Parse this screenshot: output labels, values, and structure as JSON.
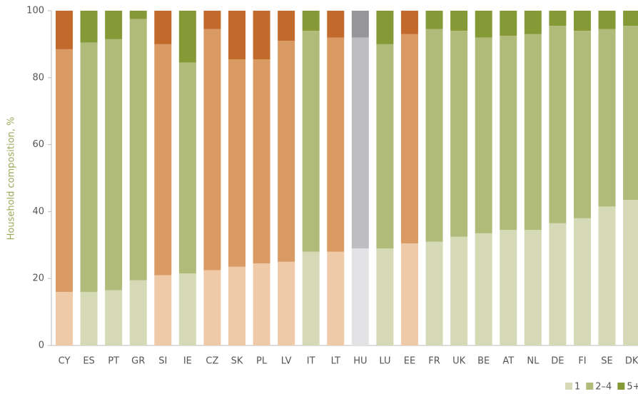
{
  "chart_data": {
    "type": "stacked_bar",
    "y_axis_label": "Household composition, %",
    "categories": [
      "CY",
      "ES",
      "PT",
      "GR",
      "SI",
      "IE",
      "CZ",
      "SK",
      "PL",
      "LV",
      "IT",
      "LT",
      "HU",
      "LU",
      "EE",
      "FR",
      "UK",
      "BE",
      "AT",
      "NL",
      "DE",
      "FI",
      "SE",
      "DK"
    ],
    "series": [
      {
        "name": "1",
        "color": "#d6d9b6",
        "values": [
          16,
          16,
          16.5,
          19.5,
          21,
          21.5,
          22.5,
          23.5,
          24.5,
          25,
          28,
          28,
          29,
          29,
          30.5,
          31,
          32.5,
          33.5,
          34.5,
          34.5,
          36.5,
          38,
          41.5,
          43.5
        ],
        "colors": [
          "#efcaa9",
          "#d6d9b6",
          "#d6d9b6",
          "#d6d9b6",
          "#efcaa9",
          "#d6d9b6",
          "#efcaa9",
          "#efcaa9",
          "#efcaa9",
          "#efcaa9",
          "#d6d9b6",
          "#efcaa9",
          "#e3e3e6",
          "#d6d9b6",
          "#efcaa9",
          "#d6d9b6",
          "#d6d9b6",
          "#d6d9b6",
          "#d6d9b6",
          "#d6d9b6",
          "#d6d9b6",
          "#d6d9b6",
          "#d6d9b6",
          "#d6d9b6"
        ]
      },
      {
        "name": "2–4",
        "color": "#b0bb7a",
        "values": [
          72.5,
          74.5,
          75,
          78,
          69,
          63,
          72,
          62,
          61,
          66,
          66,
          64,
          63,
          61,
          62.5,
          63.5,
          61.5,
          58.5,
          58,
          58.5,
          59,
          56,
          53,
          52
        ],
        "colors": [
          "#d99a63",
          "#b0bb7a",
          "#b0bb7a",
          "#b0bb7a",
          "#d99a63",
          "#b0bb7a",
          "#d99a63",
          "#d99a63",
          "#d99a63",
          "#d99a63",
          "#b0bb7a",
          "#d99a63",
          "#bebec2",
          "#b0bb7a",
          "#d99a63",
          "#b0bb7a",
          "#b0bb7a",
          "#b0bb7a",
          "#b0bb7a",
          "#b0bb7a",
          "#b0bb7a",
          "#b0bb7a",
          "#b0bb7a",
          "#b0bb7a"
        ]
      },
      {
        "name": "5+",
        "color": "#859a36",
        "values": [
          11.5,
          9.5,
          8.5,
          2.5,
          10,
          15.5,
          5.5,
          14.5,
          14.5,
          9,
          6,
          8,
          8,
          10,
          7,
          5.5,
          6,
          8,
          7.5,
          7,
          4.5,
          6,
          5.5,
          4.5
        ],
        "colors": [
          "#c26a2b",
          "#859a36",
          "#859a36",
          "#859a36",
          "#c26a2b",
          "#859a36",
          "#c26a2b",
          "#c26a2b",
          "#c26a2b",
          "#c26a2b",
          "#859a36",
          "#c26a2b",
          "#96969a",
          "#859a36",
          "#c26a2b",
          "#859a36",
          "#859a36",
          "#859a36",
          "#859a36",
          "#859a36",
          "#859a36",
          "#859a36",
          "#859a36",
          "#859a36"
        ]
      }
    ],
    "ylim": [
      0,
      100
    ],
    "yticks": [
      0,
      20,
      40,
      60,
      80,
      100
    ],
    "legend": "bottom-right"
  }
}
